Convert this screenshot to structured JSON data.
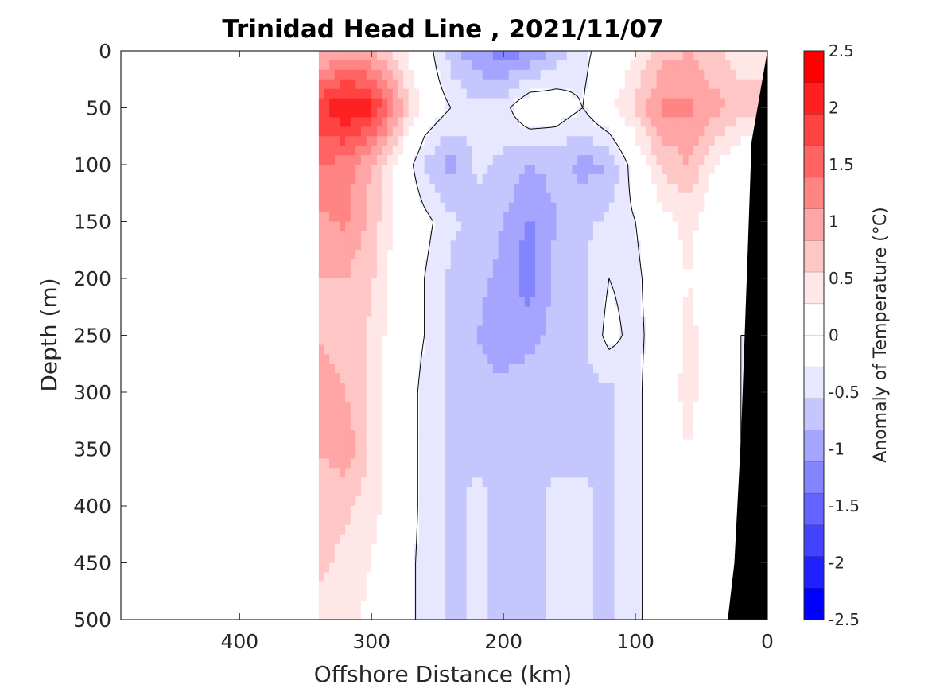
{
  "chart_data": {
    "type": "heatmap",
    "subtype": "filled-contour section",
    "title": "Trinidad Head Line , 2021/11/07",
    "xlabel": "Offshore Distance (km)",
    "ylabel": "Depth (m)",
    "colorbar_label": "Anomaly of Temperature (°C)",
    "xlim": [
      490,
      0
    ],
    "x_reversed": true,
    "ylim": [
      0,
      500
    ],
    "y_reversed": true,
    "x_ticks": [
      400,
      300,
      200,
      100,
      0
    ],
    "x_tick_labels": [
      "400",
      "300",
      "200",
      "100",
      "0"
    ],
    "y_ticks": [
      0,
      50,
      100,
      150,
      200,
      250,
      300,
      350,
      400,
      450,
      500
    ],
    "y_tick_labels": [
      "0",
      "50",
      "100",
      "150",
      "200",
      "250",
      "300",
      "350",
      "400",
      "450",
      "500"
    ],
    "colorbar_ticks": [
      2.5,
      2,
      1.5,
      1,
      0.5,
      0,
      -0.5,
      -1,
      -1.5,
      -2,
      -2.5
    ],
    "colorbar_tick_labels": [
      "2.5",
      "2",
      "1.5",
      "1",
      "0.5",
      "0",
      "-0.5",
      "-1",
      "-1.5",
      "-2",
      "-2.5"
    ],
    "contour_step": 0.25,
    "colorbar_colors": [
      "#ff0000",
      "#ff2121",
      "#ff4242",
      "#ff6363",
      "#ff8484",
      "#ffa5a5",
      "#ffc6c6",
      "#ffe7e7",
      "#ffffff",
      "#ffffff",
      "#e7e7ff",
      "#c6c6ff",
      "#a5a5ff",
      "#8484ff",
      "#6363ff",
      "#4242ff",
      "#2121ff",
      "#0000ff"
    ],
    "data_extent_km": [
      340,
      0
    ],
    "bathymetry_color": "#000000",
    "bathymetry": [
      [
        0,
        0
      ],
      [
        12,
        80
      ],
      [
        15,
        180
      ],
      [
        20,
        340
      ],
      [
        25,
        450
      ],
      [
        30,
        500
      ]
    ],
    "grid": false,
    "colorbar_position": "right",
    "x_km": [
      340,
      320,
      300,
      280,
      260,
      240,
      220,
      200,
      180,
      160,
      140,
      120,
      100,
      80,
      60,
      40,
      20
    ],
    "y_m": [
      0,
      50,
      100,
      150,
      200,
      250,
      300,
      350,
      400,
      450,
      500
    ],
    "values": [
      [
        0.9,
        1.1,
        1.0,
        0.6,
        0.2,
        -0.4,
        -0.7,
        -0.9,
        -0.8,
        -0.4,
        -0.1,
        0.2,
        0.5,
        0.9,
        1.0,
        0.8,
        0.6
      ],
      [
        1.9,
        2.3,
        2.1,
        1.2,
        0.3,
        0.0,
        -0.2,
        -0.1,
        0.3,
        0.2,
        0.0,
        0.4,
        0.8,
        1.3,
        1.3,
        1.1,
        0.9
      ],
      [
        1.5,
        1.4,
        1.0,
        0.4,
        -0.3,
        -0.6,
        -0.2,
        -0.3,
        -0.5,
        -0.4,
        -0.6,
        -0.5,
        0.2,
        0.8,
        1.0,
        0.5,
        0.2
      ],
      [
        1.2,
        1.3,
        0.9,
        0.4,
        0.1,
        -0.2,
        -0.3,
        -0.5,
        -0.8,
        -0.5,
        -0.3,
        -0.2,
        0.0,
        0.4,
        0.6,
        0.3,
        0.1
      ],
      [
        1.0,
        1.0,
        0.8,
        0.3,
        0.0,
        -0.3,
        -0.4,
        -0.6,
        -0.9,
        -0.4,
        -0.3,
        0.0,
        -0.1,
        0.3,
        0.5,
        0.3,
        0.1
      ],
      [
        1.0,
        0.9,
        0.7,
        0.3,
        0.0,
        -0.3,
        -0.5,
        -0.7,
        -0.6,
        -0.4,
        -0.3,
        0.1,
        -0.1,
        0.2,
        0.6,
        0.3,
        0.0
      ],
      [
        1.1,
        1.0,
        0.7,
        0.3,
        -0.1,
        -0.3,
        -0.4,
        -0.4,
        -0.3,
        -0.3,
        -0.3,
        -0.3,
        -0.1,
        0.3,
        0.6,
        0.3,
        0.0
      ],
      [
        1.0,
        1.2,
        0.7,
        0.3,
        -0.1,
        -0.3,
        -0.3,
        -0.3,
        -0.3,
        -0.3,
        -0.3,
        -0.3,
        -0.1,
        0.3,
        0.5,
        0.3,
        0.0
      ],
      [
        0.8,
        0.8,
        0.6,
        0.3,
        -0.1,
        -0.3,
        -0.2,
        -0.3,
        -0.3,
        -0.2,
        -0.2,
        -0.3,
        -0.1,
        0.3,
        0.4,
        0.2,
        0.0
      ],
      [
        0.8,
        0.7,
        0.5,
        0.2,
        -0.1,
        -0.3,
        -0.2,
        -0.3,
        -0.3,
        -0.2,
        -0.2,
        -0.3,
        -0.1,
        0.3,
        0.4,
        0.2,
        0.0
      ],
      [
        0.7,
        0.6,
        0.4,
        0.2,
        -0.1,
        -0.3,
        -0.2,
        -0.3,
        -0.3,
        -0.2,
        -0.2,
        -0.3,
        -0.1,
        0.3,
        0.3,
        0.1,
        0.0
      ]
    ]
  }
}
